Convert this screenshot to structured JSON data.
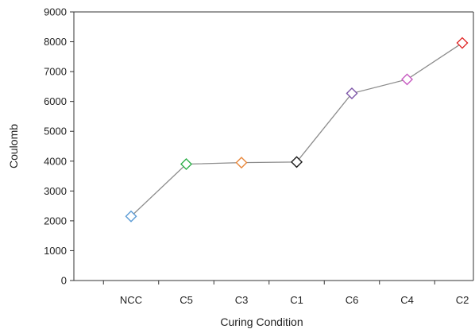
{
  "chart_data": {
    "type": "line",
    "title": "",
    "xlabel": "Curing Condition",
    "ylabel": "Coulomb",
    "ylim": [
      0,
      9000
    ],
    "yticks": [
      0,
      1000,
      2000,
      3000,
      4000,
      5000,
      6000,
      7000,
      8000,
      9000
    ],
    "grid": false,
    "legend": "none",
    "categories": [
      "NCC",
      "C5",
      "C3",
      "C1",
      "C6",
      "C4",
      "C2"
    ],
    "series": [
      {
        "values": [
          2150,
          3900,
          3950,
          3970,
          6270,
          6740,
          7960
        ],
        "line_color": "#8c8c8c",
        "marker": "diamond-open",
        "marker_colors": [
          "#5b9bd5",
          "#2fb04a",
          "#e8873a",
          "#1a1a1a",
          "#7d55a8",
          "#c75ac1",
          "#e02424"
        ]
      }
    ]
  }
}
